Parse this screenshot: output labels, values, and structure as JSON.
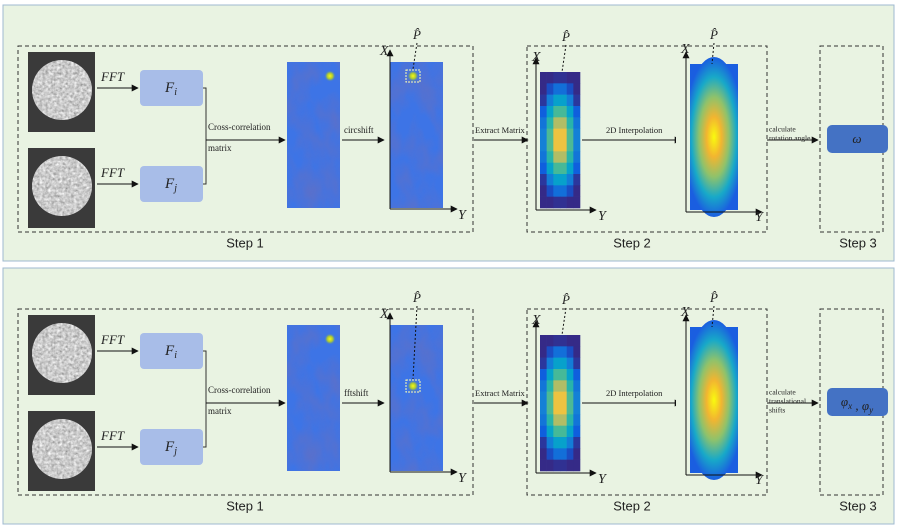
{
  "panels": [
    {
      "fft_labels": [
        "FFT",
        "FFT"
      ],
      "filters": [
        {
          "base": "F",
          "sub": "i"
        },
        {
          "base": "F",
          "sub": "j"
        }
      ],
      "correlation_label": [
        "Cross-correlation",
        "matrix"
      ],
      "shift_label": "circshift",
      "axis_x": "X",
      "axis_y": "Y",
      "peak": "P̂",
      "extract_label": "Extract Matrix",
      "interp_label": "2D Interpolation",
      "calc_label": [
        "calculate",
        "rotation angle"
      ],
      "result": [
        {
          "base": "ω"
        }
      ],
      "steps": [
        "Step 1",
        "Step 2",
        "Step 3"
      ]
    },
    {
      "fft_labels": [
        "FFT",
        "FFT"
      ],
      "filters": [
        {
          "base": "F",
          "sub": "i"
        },
        {
          "base": "F",
          "sub": "j"
        }
      ],
      "correlation_label": [
        "Cross-correlation",
        "matrix"
      ],
      "shift_label": "fftshift",
      "axis_x": "X",
      "axis_y": "Y",
      "peak": "P̂",
      "extract_label": "Extract Matrix",
      "interp_label": "2D Interpolation",
      "calc_label": [
        "calculate",
        "translational",
        "shifts"
      ],
      "result": [
        {
          "base": "φ",
          "sub": "x"
        },
        {
          "base": "φ",
          "sub": "y"
        }
      ],
      "result_separator": " , ",
      "steps": [
        "Step 1",
        "Step 2",
        "Step 3"
      ]
    }
  ]
}
